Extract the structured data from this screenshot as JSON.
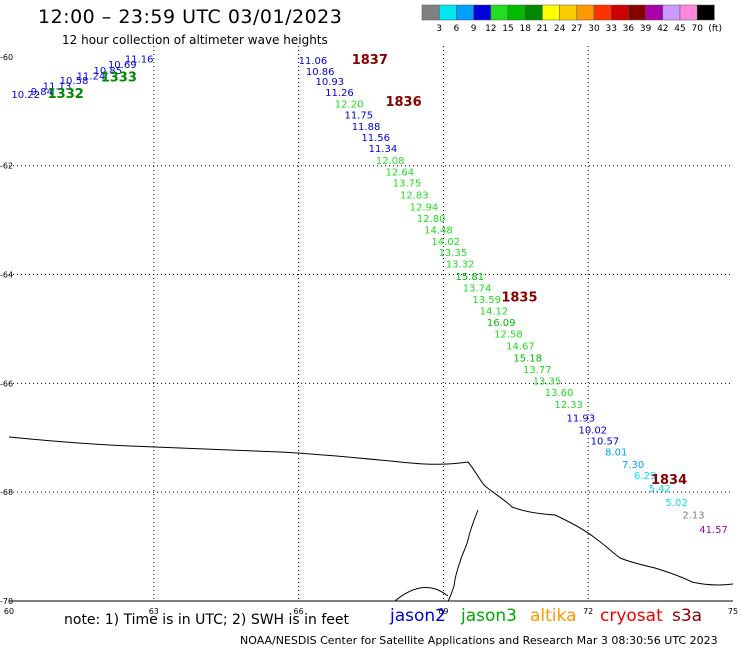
{
  "header": {
    "title": "12:00 – 23:59 UTC 03/01/2023",
    "subtitle": "12 hour collection of altimeter wave heights"
  },
  "legend": {
    "unit": "(ft)",
    "bins": [
      {
        "label": "3",
        "color": "#808080"
      },
      {
        "label": "6",
        "color": "#00e5ee"
      },
      {
        "label": "9",
        "color": "#00a0ff"
      },
      {
        "label": "12",
        "color": "#0000dd"
      },
      {
        "label": "15",
        "color": "#22dd22"
      },
      {
        "label": "18",
        "color": "#00bb00"
      },
      {
        "label": "21",
        "color": "#008800"
      },
      {
        "label": "24",
        "color": "#ffff00"
      },
      {
        "label": "27",
        "color": "#ffcc00"
      },
      {
        "label": "30",
        "color": "#ff9900"
      },
      {
        "label": "33",
        "color": "#ff3300"
      },
      {
        "label": "36",
        "color": "#cc0000"
      },
      {
        "label": "39",
        "color": "#880000"
      },
      {
        "label": "42",
        "color": "#aa00aa"
      },
      {
        "label": "45",
        "color": "#cc99ff"
      },
      {
        "label": "70",
        "color": "#ff88dd"
      },
      {
        "label": "",
        "color": "#000000"
      }
    ]
  },
  "axes": {
    "lat_ticks": [
      "-60",
      "-62",
      "-64",
      "-66",
      "-68",
      "-70"
    ],
    "lon_ticks": [
      "60",
      "63",
      "66",
      "69",
      "72",
      "75"
    ]
  },
  "passes": [
    {
      "label": "1837",
      "lon": 67.1,
      "lat": -60.13,
      "color": "#880000"
    },
    {
      "label": "1836",
      "lon": 67.8,
      "lat": -60.9,
      "color": "#880000"
    },
    {
      "label": "1835",
      "lon": 70.2,
      "lat": -64.5,
      "color": "#880000"
    },
    {
      "label": "1834",
      "lon": 73.3,
      "lat": -67.85,
      "color": "#880000"
    },
    {
      "label": "1333",
      "lon": 61.9,
      "lat": -60.45,
      "color": "#008800"
    },
    {
      "label": "1332",
      "lon": 60.8,
      "lat": -60.76,
      "color": "#008800"
    }
  ],
  "observations": [
    {
      "v": "10.22",
      "lon": 60.05,
      "lat": -60.76,
      "color": "#0000dd"
    },
    {
      "v": "9.84",
      "lon": 60.45,
      "lat": -60.7,
      "color": "#0000dd"
    },
    {
      "v": "11.13",
      "lon": 60.7,
      "lat": -60.6,
      "color": "#0000dd"
    },
    {
      "v": "10.58",
      "lon": 61.05,
      "lat": -60.5,
      "color": "#0000dd"
    },
    {
      "v": "11.24",
      "lon": 61.4,
      "lat": -60.42,
      "color": "#0000dd"
    },
    {
      "v": "10.85",
      "lon": 61.75,
      "lat": -60.31,
      "color": "#0000dd"
    },
    {
      "v": "10.69",
      "lon": 62.05,
      "lat": -60.2,
      "color": "#0000dd"
    },
    {
      "v": "11.16",
      "lon": 62.4,
      "lat": -60.1,
      "color": "#0000dd"
    },
    {
      "v": "11.06",
      "lon": 66.0,
      "lat": -60.13,
      "color": "#0000dd"
    },
    {
      "v": "10.86",
      "lon": 66.15,
      "lat": -60.33,
      "color": "#0000dd"
    },
    {
      "v": "10.93",
      "lon": 66.35,
      "lat": -60.52,
      "color": "#0000dd"
    },
    {
      "v": "11.26",
      "lon": 66.55,
      "lat": -60.72,
      "color": "#0000dd"
    },
    {
      "v": "12.20",
      "lon": 66.75,
      "lat": -60.93,
      "color": "#22dd22"
    },
    {
      "v": "11.75",
      "lon": 66.95,
      "lat": -61.13,
      "color": "#0000dd"
    },
    {
      "v": "11.88",
      "lon": 67.1,
      "lat": -61.34,
      "color": "#0000dd"
    },
    {
      "v": "11.56",
      "lon": 67.3,
      "lat": -61.55,
      "color": "#0000dd"
    },
    {
      "v": "11.34",
      "lon": 67.45,
      "lat": -61.75,
      "color": "#0000dd"
    },
    {
      "v": "12.08",
      "lon": 67.6,
      "lat": -61.97,
      "color": "#22dd22"
    },
    {
      "v": "12.64",
      "lon": 67.8,
      "lat": -62.18,
      "color": "#22dd22"
    },
    {
      "v": "13.75",
      "lon": 67.95,
      "lat": -62.38,
      "color": "#22dd22"
    },
    {
      "v": "12.83",
      "lon": 68.1,
      "lat": -62.6,
      "color": "#22dd22"
    },
    {
      "v": "12.94",
      "lon": 68.3,
      "lat": -62.82,
      "color": "#22dd22"
    },
    {
      "v": "12.80",
      "lon": 68.45,
      "lat": -63.03,
      "color": "#22dd22"
    },
    {
      "v": "14.48",
      "lon": 68.6,
      "lat": -63.25,
      "color": "#22dd22"
    },
    {
      "v": "14.02",
      "lon": 68.75,
      "lat": -63.46,
      "color": "#22dd22"
    },
    {
      "v": "13.35",
      "lon": 68.9,
      "lat": -63.66,
      "color": "#22dd22"
    },
    {
      "v": "13.32",
      "lon": 69.05,
      "lat": -63.87,
      "color": "#22dd22"
    },
    {
      "v": "15.81",
      "lon": 69.25,
      "lat": -64.1,
      "color": "#00bb00"
    },
    {
      "v": "13.74",
      "lon": 69.4,
      "lat": -64.31,
      "color": "#22dd22"
    },
    {
      "v": "13.59",
      "lon": 69.6,
      "lat": -64.52,
      "color": "#22dd22"
    },
    {
      "v": "14.12",
      "lon": 69.75,
      "lat": -64.73,
      "color": "#22dd22"
    },
    {
      "v": "16.09",
      "lon": 69.9,
      "lat": -64.95,
      "color": "#00bb00"
    },
    {
      "v": "12.58",
      "lon": 70.05,
      "lat": -65.16,
      "color": "#22dd22"
    },
    {
      "v": "14.67",
      "lon": 70.3,
      "lat": -65.38,
      "color": "#22dd22"
    },
    {
      "v": "15.18",
      "lon": 70.45,
      "lat": -65.6,
      "color": "#00bb00"
    },
    {
      "v": "13.77",
      "lon": 70.65,
      "lat": -65.81,
      "color": "#22dd22"
    },
    {
      "v": "13.35",
      "lon": 70.85,
      "lat": -66.02,
      "color": "#22dd22"
    },
    {
      "v": "13.60",
      "lon": 71.1,
      "lat": -66.23,
      "color": "#22dd22"
    },
    {
      "v": "12.33",
      "lon": 71.3,
      "lat": -66.45,
      "color": "#22dd22"
    },
    {
      "v": "11.93",
      "lon": 71.55,
      "lat": -66.7,
      "color": "#0000dd"
    },
    {
      "v": "10.02",
      "lon": 71.8,
      "lat": -66.92,
      "color": "#0000dd"
    },
    {
      "v": "10.57",
      "lon": 72.05,
      "lat": -67.12,
      "color": "#0000dd"
    },
    {
      "v": "8.01",
      "lon": 72.35,
      "lat": -67.33,
      "color": "#00a0ff"
    },
    {
      "v": "7.30",
      "lon": 72.7,
      "lat": -67.56,
      "color": "#00a0ff"
    },
    {
      "v": "6.29",
      "lon": 72.95,
      "lat": -67.76,
      "color": "#00e5ee"
    },
    {
      "v": "5.42",
      "lon": 73.25,
      "lat": -68.0,
      "color": "#00e5ee"
    },
    {
      "v": "5.02",
      "lon": 73.6,
      "lat": -68.25,
      "color": "#00e5ee"
    },
    {
      "v": "2.13",
      "lon": 73.95,
      "lat": -68.48,
      "color": "#808080"
    },
    {
      "v": "41.57",
      "lon": 74.3,
      "lat": -68.75,
      "color": "#aa00aa"
    }
  ],
  "note": "note:  1) Time is in UTC;  2) SWH is in feet",
  "satellites": [
    {
      "name": "jason2",
      "color": "#0000dd"
    },
    {
      "name": "jason3",
      "color": "#00aa00"
    },
    {
      "name": "altika",
      "color": "#ff9900"
    },
    {
      "name": "cryosat",
      "color": "#ee0000"
    },
    {
      "name": "s3a",
      "color": "#880000"
    }
  ],
  "footer": "NOAA/NESDIS Center for Satellite Applications and Research    Mar  3 08:30:56 UTC 2023"
}
